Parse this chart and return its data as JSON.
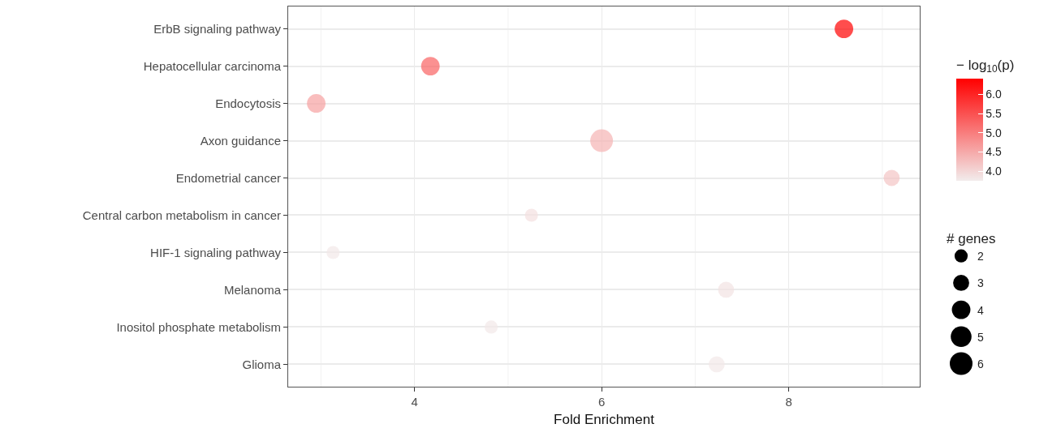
{
  "chart_data": {
    "type": "bubble",
    "orientation": "horizontal",
    "xlabel": "Fold Enrichment",
    "clabel": "− log$_{10}$(p)",
    "legend_title": "# genes",
    "grid": true,
    "marker": "circle",
    "categories": [
      "ErbB signaling pathway",
      "Hepatocellular carcinoma",
      "Endocytosis",
      "Axon guidance",
      "Endometrial cancer",
      "Central carbon metabolism in cancer",
      "HIF-1 signaling pathway",
      "Melanoma",
      "Inositol phosphate metabolism",
      "Glioma"
    ],
    "values": [
      8.59,
      4.17,
      2.95,
      6.0,
      9.1,
      5.25,
      3.13,
      7.33,
      4.82,
      7.23
    ],
    "sizes": [
      4,
      4,
      4,
      6,
      3,
      2,
      2,
      3,
      2,
      3
    ],
    "size_legend": [
      2,
      3,
      4,
      5,
      6
    ],
    "cvalues": [
      6.4,
      5.3,
      4.6,
      4.4,
      4.2,
      3.9,
      3.8,
      3.85,
      3.8,
      3.8
    ],
    "clim": [
      3.75,
      6.42
    ],
    "cticks": [
      {
        "value": 4,
        "label": "4.0"
      },
      {
        "value": 4.5,
        "label": "4.5"
      },
      {
        "value": 5,
        "label": "5.0"
      },
      {
        "value": 5.5,
        "label": "5.5"
      },
      {
        "value": 6,
        "label": "6.0"
      }
    ],
    "xlim": [
      2.65,
      9.4
    ],
    "xticks": [
      4,
      6,
      8
    ]
  }
}
